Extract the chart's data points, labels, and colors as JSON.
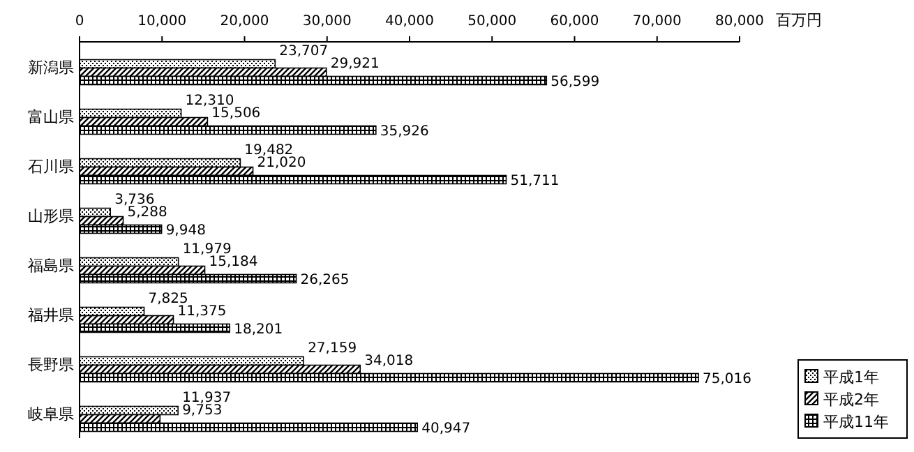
{
  "chart_data": {
    "type": "bar",
    "orientation": "horizontal",
    "xlabel": "百万円",
    "categories": [
      "新潟県",
      "富山県",
      "石川県",
      "山形県",
      "福島県",
      "福井県",
      "長野県",
      "岐阜県"
    ],
    "series": [
      {
        "name": "平成1年",
        "color": "#000000",
        "values": [
          23707,
          12310,
          19482,
          3736,
          11979,
          7825,
          27159,
          11937
        ],
        "value_labels": [
          "23,707",
          "12,310",
          "19,482",
          "3,736",
          "11,979",
          "7,825",
          "27,159",
          "11,937"
        ]
      },
      {
        "name": "平成2年",
        "color": "#000000",
        "values": [
          29921,
          15506,
          21020,
          5288,
          15184,
          11375,
          34018,
          9753
        ],
        "value_labels": [
          "29,921",
          "15,506",
          "21,020",
          "5,288",
          "15,184",
          "11,375",
          "34,018",
          "9,753"
        ]
      },
      {
        "name": "平成11年",
        "color": "#000000",
        "values": [
          56599,
          35926,
          51711,
          9948,
          26265,
          18201,
          75016,
          40947
        ],
        "value_labels": [
          "56,599",
          "35,926",
          "51,711",
          "9,948",
          "26,265",
          "18,201",
          "75,016",
          "40,947"
        ]
      }
    ],
    "xlim": [
      0,
      80000
    ],
    "xticks": [
      0,
      {
        "value": 10000,
        "label": "10,000"
      },
      {
        "value": 20000,
        "label": "20,000"
      },
      {
        "value": 30000,
        "label": "30,000"
      },
      {
        "value": 40000,
        "label": "40,000"
      },
      {
        "value": 50000,
        "label": "50,000"
      },
      {
        "value": 60000,
        "label": "60,000"
      },
      {
        "value": 70000,
        "label": "70,000"
      },
      {
        "value": 80000,
        "label": "80,000"
      }
    ],
    "legend": "bottom right",
    "grid": false
  }
}
